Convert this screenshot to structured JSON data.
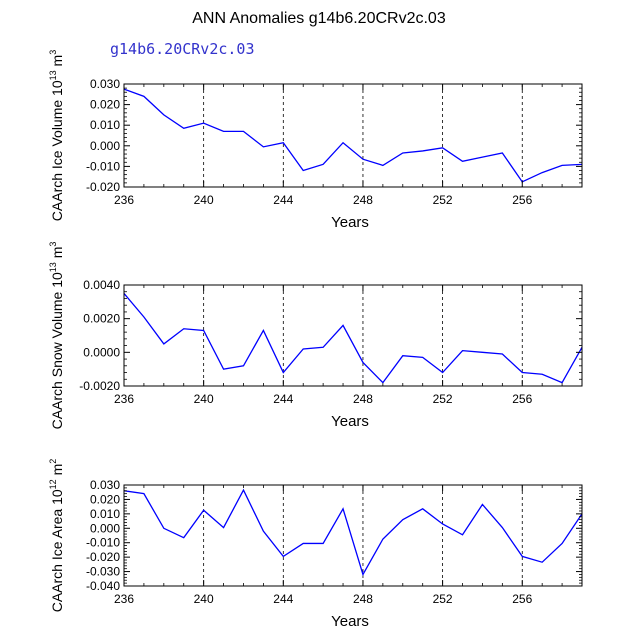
{
  "title": "ANN Anomalies g14b6.20CRv2c.03",
  "subtitle": "g14b6.20CRv2c.03",
  "colors": {
    "line": "#0000ff",
    "axis": "#000000",
    "grid": "#000000"
  },
  "chart_data": [
    {
      "type": "line",
      "ylabel": {
        "base": "CAArch Ice Volume 10",
        "exp": "13",
        "unit": " m",
        "unit_exp": "3"
      },
      "xlabel": "Years",
      "xlim": [
        236,
        259
      ],
      "ylim": [
        -0.02,
        0.03
      ],
      "yticks": [
        -0.02,
        -0.01,
        0.0,
        0.01,
        0.02,
        0.03
      ],
      "yticklabels": [
        "-0.020",
        "-0.010",
        "0.000",
        "0.010",
        "0.020",
        "0.030"
      ],
      "xticks": [
        236,
        240,
        244,
        248,
        252,
        256
      ],
      "xticklabels": [
        "236",
        "240",
        "244",
        "248",
        "252",
        "256"
      ],
      "x": [
        236,
        237,
        238,
        239,
        240,
        241,
        242,
        243,
        244,
        245,
        246,
        247,
        248,
        249,
        250,
        251,
        252,
        253,
        254,
        255,
        256,
        257,
        258,
        259
      ],
      "values": [
        0.0275,
        0.024,
        0.015,
        0.0085,
        0.011,
        0.007,
        0.007,
        -0.0005,
        0.0015,
        -0.012,
        -0.009,
        0.0015,
        -0.0065,
        -0.0095,
        -0.0035,
        -0.0025,
        -0.001,
        -0.0075,
        -0.0055,
        -0.0035,
        -0.0175,
        -0.013,
        -0.0095,
        -0.009
      ]
    },
    {
      "type": "line",
      "ylabel": {
        "base": "CAArch Snow Volume 10",
        "exp": "13",
        "unit": " m",
        "unit_exp": "3"
      },
      "xlabel": "Years",
      "xlim": [
        236,
        259
      ],
      "ylim": [
        -0.002,
        0.004
      ],
      "yticks": [
        -0.002,
        0.0,
        0.002,
        0.004
      ],
      "yticklabels": [
        "-0.0020",
        "0.0000",
        "0.0020",
        "0.0040"
      ],
      "xticks": [
        236,
        240,
        244,
        248,
        252,
        256
      ],
      "xticklabels": [
        "236",
        "240",
        "244",
        "248",
        "252",
        "256"
      ],
      "x": [
        236,
        237,
        238,
        239,
        240,
        241,
        242,
        243,
        244,
        245,
        246,
        247,
        248,
        249,
        250,
        251,
        252,
        253,
        254,
        255,
        256,
        257,
        258,
        259
      ],
      "values": [
        0.0035,
        0.0021,
        0.0005,
        0.0014,
        0.0013,
        -0.001,
        -0.0008,
        0.0013,
        -0.0012,
        0.0002,
        0.0003,
        0.0016,
        -0.0006,
        -0.0018,
        -0.0002,
        -0.0003,
        -0.0012,
        0.0001,
        0.0,
        -0.0001,
        -0.0012,
        -0.0013,
        -0.0018,
        0.0003
      ]
    },
    {
      "type": "line",
      "ylabel": {
        "base": "CAArch Ice Area 10",
        "exp": "12",
        "unit": " m",
        "unit_exp": "2"
      },
      "xlabel": "Years",
      "xlim": [
        236,
        259
      ],
      "ylim": [
        -0.04,
        0.03
      ],
      "yticks": [
        -0.04,
        -0.03,
        -0.02,
        -0.01,
        0.0,
        0.01,
        0.02,
        0.03
      ],
      "yticklabels": [
        "-0.040",
        "-0.030",
        "-0.020",
        "-0.010",
        "0.000",
        "0.010",
        "0.020",
        "0.030"
      ],
      "xticks": [
        236,
        240,
        244,
        248,
        252,
        256
      ],
      "xticklabels": [
        "236",
        "240",
        "244",
        "248",
        "252",
        "256"
      ],
      "x": [
        236,
        237,
        238,
        239,
        240,
        241,
        242,
        243,
        244,
        245,
        246,
        247,
        248,
        249,
        250,
        251,
        252,
        253,
        254,
        255,
        256,
        257,
        258,
        259
      ],
      "values": [
        0.026,
        0.024,
        0.0,
        -0.0065,
        0.0125,
        0.0005,
        0.0265,
        -0.002,
        -0.0195,
        -0.0105,
        -0.0105,
        0.0135,
        -0.032,
        -0.0075,
        0.006,
        0.0135,
        0.003,
        -0.0045,
        0.0165,
        0.0005,
        -0.0195,
        -0.0235,
        -0.0105,
        0.01
      ]
    }
  ]
}
